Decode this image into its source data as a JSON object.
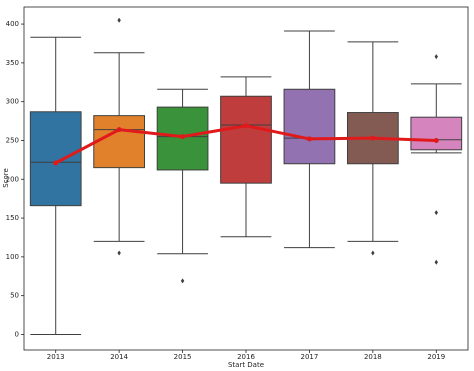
{
  "chart_data": {
    "type": "box",
    "x_label": "Start Date",
    "y_label": "Score",
    "categories": [
      "2013",
      "2014",
      "2015",
      "2016",
      "2017",
      "2018",
      "2019"
    ],
    "boxes": [
      {
        "color": "#3274a1",
        "whisker_low": 0,
        "q1": 166,
        "median": 222,
        "q3": 287,
        "whisker_high": 383,
        "outliers": []
      },
      {
        "color": "#e1812c",
        "whisker_low": 120,
        "q1": 215,
        "median": 264,
        "q3": 282,
        "whisker_high": 363,
        "outliers": [
          405,
          105
        ]
      },
      {
        "color": "#3a923a",
        "whisker_low": 104,
        "q1": 212,
        "median": 255,
        "q3": 293,
        "whisker_high": 316,
        "outliers": [
          69
        ]
      },
      {
        "color": "#c03d3e",
        "whisker_low": 126,
        "q1": 195,
        "median": 270,
        "q3": 307,
        "whisker_high": 332,
        "outliers": []
      },
      {
        "color": "#9372b2",
        "whisker_low": 112,
        "q1": 220,
        "median": 253,
        "q3": 316,
        "whisker_high": 391,
        "outliers": []
      },
      {
        "color": "#845b53",
        "whisker_low": 120,
        "q1": 220,
        "median": 253,
        "q3": 286,
        "whisker_high": 377,
        "outliers": [
          105
        ]
      },
      {
        "color": "#d684bd",
        "whisker_low": 234,
        "q1": 238,
        "median": 251,
        "q3": 280,
        "whisker_high": 323,
        "outliers": [
          358,
          157,
          93
        ]
      }
    ],
    "line": {
      "color": "#e0191b",
      "values": [
        221,
        264,
        255,
        269,
        252,
        253,
        250
      ]
    },
    "ylim": [
      -20,
      422
    ],
    "yticks": [
      0,
      50,
      100,
      150,
      200,
      250,
      300,
      350,
      400
    ]
  }
}
